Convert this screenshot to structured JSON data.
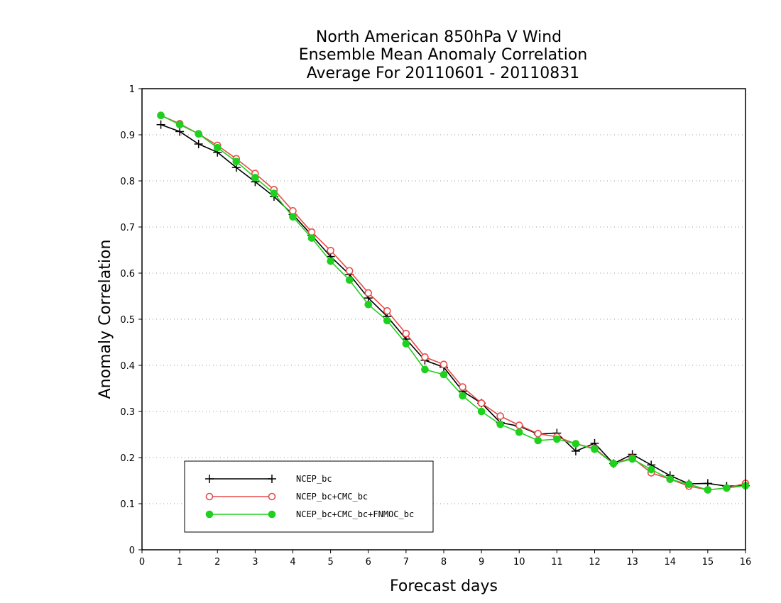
{
  "chart_data": {
    "type": "line",
    "title_lines": [
      "North American 850hPa V Wind",
      "Ensemble Mean Anomaly Correlation",
      "Average For 20110601 - 20110831"
    ],
    "xlabel": "Forecast days",
    "ylabel": "Anomaly Correlation",
    "xlim": [
      0,
      16
    ],
    "ylim": [
      0,
      1
    ],
    "xticks": [
      0,
      1,
      2,
      3,
      4,
      5,
      6,
      7,
      8,
      9,
      10,
      11,
      12,
      13,
      14,
      15,
      16
    ],
    "yticks": [
      0,
      0.1,
      0.2,
      0.3,
      0.4,
      0.5,
      0.6,
      0.7,
      0.8,
      0.9,
      1
    ],
    "ytick_labels": [
      "0",
      "0.1",
      "0.2",
      "0.3",
      "0.4",
      "0.5",
      "0.6",
      "0.7",
      "0.8",
      "0.9",
      "1"
    ],
    "grid": "horizontal dotted",
    "legend_position": "bottom-left",
    "x": [
      0.5,
      1,
      1.5,
      2,
      2.5,
      3,
      3.5,
      4,
      4.5,
      5,
      5.5,
      6,
      6.5,
      7,
      7.5,
      8,
      8.5,
      9,
      9.5,
      10,
      10.5,
      11,
      11.5,
      12,
      12.5,
      13,
      13.5,
      14,
      14.5,
      15,
      15.5,
      16
    ],
    "series": [
      {
        "name": "NCEP_bc",
        "color": "#000000",
        "marker": "plus",
        "values": [
          0.922,
          0.907,
          0.88,
          0.862,
          0.829,
          0.798,
          0.766,
          0.727,
          0.682,
          0.636,
          0.597,
          0.546,
          0.506,
          0.457,
          0.411,
          0.396,
          0.344,
          0.318,
          0.276,
          0.268,
          0.251,
          0.253,
          0.214,
          0.231,
          0.187,
          0.207,
          0.184,
          0.161,
          0.143,
          0.144,
          0.138,
          0.139
        ]
      },
      {
        "name": "NCEP_bc+CMC_bc",
        "color": "#e84a4a",
        "marker": "open-circle",
        "values": [
          0.942,
          0.924,
          0.902,
          0.877,
          0.848,
          0.816,
          0.781,
          0.735,
          0.689,
          0.649,
          0.605,
          0.557,
          0.518,
          0.469,
          0.418,
          0.402,
          0.353,
          0.318,
          0.29,
          0.27,
          0.252,
          0.245,
          0.23,
          0.22,
          0.187,
          0.199,
          0.167,
          0.153,
          0.138,
          0.13,
          0.134,
          0.144
        ]
      },
      {
        "name": "NCEP_bc+CMC_bc+FNMOC_bc",
        "color": "#1fd11f",
        "marker": "filled-circle",
        "values": [
          0.942,
          0.922,
          0.902,
          0.872,
          0.842,
          0.807,
          0.773,
          0.722,
          0.676,
          0.626,
          0.585,
          0.532,
          0.497,
          0.447,
          0.391,
          0.38,
          0.334,
          0.3,
          0.272,
          0.255,
          0.237,
          0.24,
          0.23,
          0.218,
          0.187,
          0.197,
          0.174,
          0.153,
          0.142,
          0.13,
          0.134,
          0.139
        ]
      }
    ]
  }
}
